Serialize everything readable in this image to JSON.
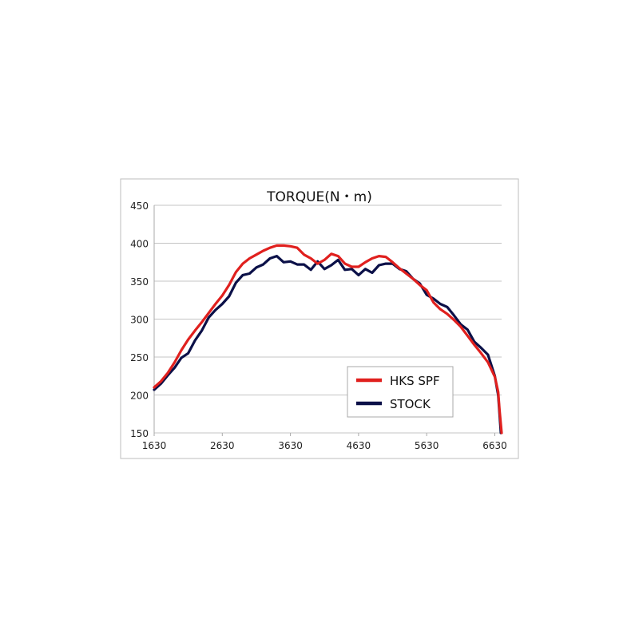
{
  "chart_data": {
    "type": "line",
    "title": "TORQUE(N・m)",
    "xlabel": "",
    "ylabel": "",
    "xlim": [
      1630,
      6730
    ],
    "ylim": [
      150,
      450
    ],
    "xticks": [
      1630,
      2630,
      3630,
      4630,
      5630,
      6630
    ],
    "yticks": [
      150,
      200,
      250,
      300,
      350,
      400,
      450
    ],
    "grid": "horizontal",
    "legend_position": "bottom-right",
    "series": [
      {
        "name": "HKS SPF",
        "color": "#e0201e",
        "x": [
          1630,
          1730,
          1830,
          1930,
          2030,
          2130,
          2230,
          2330,
          2430,
          2530,
          2630,
          2730,
          2830,
          2930,
          3030,
          3130,
          3230,
          3330,
          3430,
          3530,
          3630,
          3730,
          3830,
          3930,
          4030,
          4130,
          4230,
          4330,
          4430,
          4530,
          4630,
          4730,
          4830,
          4930,
          5030,
          5130,
          5230,
          5330,
          5430,
          5530,
          5630,
          5730,
          5830,
          5930,
          6030,
          6130,
          6230,
          6330,
          6430,
          6530,
          6630,
          6680,
          6700,
          6730
        ],
        "y": [
          210,
          218,
          229,
          243,
          259,
          273,
          285,
          296,
          308,
          320,
          331,
          345,
          362,
          373,
          380,
          385,
          390,
          394,
          397,
          397,
          396,
          394,
          385,
          380,
          373,
          378,
          386,
          383,
          373,
          369,
          369,
          375,
          380,
          383,
          382,
          375,
          367,
          360,
          353,
          345,
          338,
          322,
          313,
          307,
          299,
          290,
          278,
          266,
          255,
          243,
          224,
          204,
          180,
          150
        ]
      },
      {
        "name": "STOCK",
        "color": "#0b1048",
        "x": [
          1630,
          1730,
          1830,
          1930,
          2030,
          2130,
          2230,
          2330,
          2430,
          2530,
          2630,
          2730,
          2830,
          2930,
          3030,
          3130,
          3230,
          3330,
          3430,
          3530,
          3630,
          3730,
          3830,
          3930,
          4030,
          4130,
          4230,
          4330,
          4430,
          4530,
          4630,
          4730,
          4830,
          4930,
          5030,
          5130,
          5230,
          5330,
          5430,
          5530,
          5630,
          5730,
          5830,
          5930,
          6030,
          6130,
          6230,
          6330,
          6430,
          6530,
          6630,
          6680,
          6720
        ],
        "y": [
          207,
          215,
          226,
          236,
          249,
          255,
          272,
          285,
          302,
          312,
          320,
          330,
          348,
          358,
          360,
          368,
          372,
          380,
          383,
          375,
          376,
          372,
          372,
          365,
          376,
          366,
          371,
          378,
          365,
          366,
          358,
          366,
          361,
          371,
          373,
          373,
          366,
          363,
          353,
          347,
          332,
          327,
          320,
          316,
          305,
          293,
          286,
          270,
          262,
          253,
          225,
          200,
          150
        ]
      }
    ]
  }
}
